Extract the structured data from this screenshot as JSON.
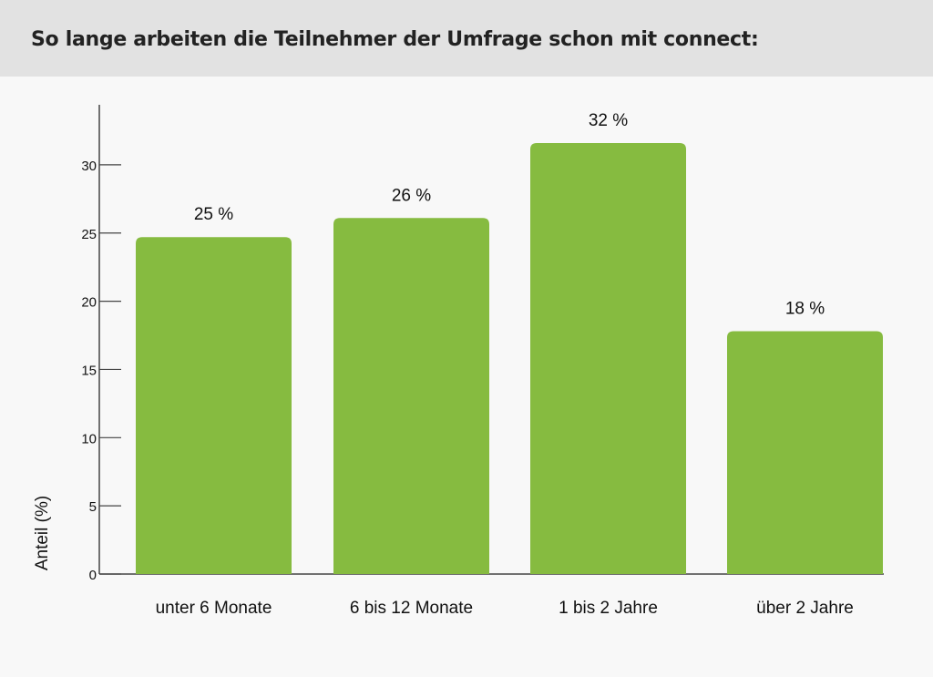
{
  "title": "So lange arbeiten die Teilnehmer der Umfrage schon mit connect:",
  "chart_data": {
    "type": "bar",
    "title": "So lange arbeiten die Teilnehmer der Umfrage schon mit connect:",
    "categories": [
      "unter 6 Monate",
      "6 bis 12 Monate",
      "1 bis 2 Jahre",
      "über 2 Jahre"
    ],
    "values": [
      24.7,
      26.1,
      31.6,
      17.8
    ],
    "data_labels": [
      "25 %",
      "26 %",
      "32 %",
      "18 %"
    ],
    "xlabel": "",
    "ylabel": "Anteil (%)",
    "ylim": [
      0,
      34.4
    ],
    "yticks": [
      0,
      5,
      10,
      15,
      20,
      25,
      30
    ],
    "grid": false,
    "bar_color": "#86bb40"
  }
}
